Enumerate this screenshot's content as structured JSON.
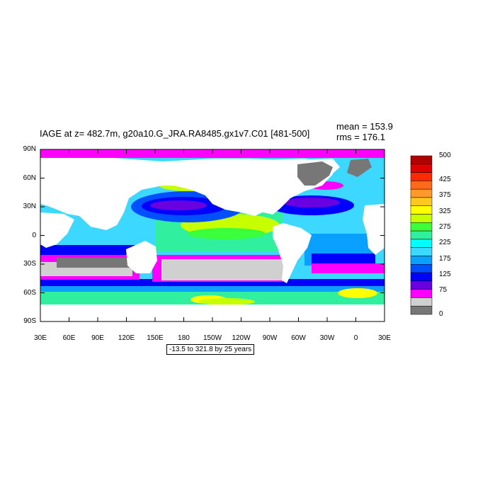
{
  "title": "IAGE at z= 482.7m, g20a10.G_JRA.RA8485.gx1v7.C01 [481-500]",
  "stats": {
    "mean": "mean = 153.9",
    "rms": "rms = 176.1"
  },
  "lat_labels": [
    "90N",
    "60N",
    "30N",
    "0",
    "30S",
    "60S",
    "90S"
  ],
  "lon_labels": [
    "30E",
    "60E",
    "90E",
    "120E",
    "150E",
    "180",
    "150W",
    "120W",
    "90W",
    "60W",
    "30W",
    "0",
    "30E"
  ],
  "range_note": "-13.5 to 321.8 by 25 years",
  "colorbar": {
    "labels": [
      "500",
      "425",
      "375",
      "325",
      "275",
      "225",
      "175",
      "125",
      "75",
      "0"
    ],
    "colors": [
      "#b00000",
      "#e00000",
      "#ff2a00",
      "#ff6a1a",
      "#ff9a2a",
      "#ffc81f",
      "#ffff00",
      "#c8ff00",
      "#3cff3c",
      "#30f0a0",
      "#00ffff",
      "#3cd8ff",
      "#0aa0ff",
      "#0050ff",
      "#0000ff",
      "#6a00e0",
      "#ff00ff",
      "#d0d0d0",
      "#777777"
    ]
  },
  "map_colors": {
    "land": "#ffffff",
    "ice": "#777777",
    "light": "#d0d0d0",
    "magenta": "#ff00ff",
    "purple": "#6a00e0",
    "blue": "#0000ff",
    "mid_blue": "#0050ff",
    "sky": "#0aa0ff",
    "cyan": "#3cd8ff",
    "aqua": "#00ffff",
    "sea_green": "#30f0a0",
    "green": "#3cff3c",
    "yellow_green": "#c8ff00",
    "yellow": "#ffff00"
  }
}
